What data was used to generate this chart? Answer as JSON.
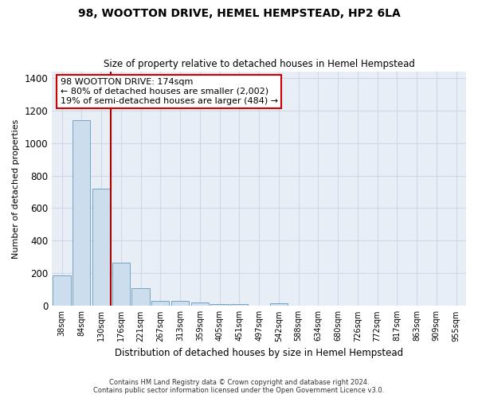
{
  "title": "98, WOOTTON DRIVE, HEMEL HEMPSTEAD, HP2 6LA",
  "subtitle": "Size of property relative to detached houses in Hemel Hempstead",
  "xlabel": "Distribution of detached houses by size in Hemel Hempstead",
  "ylabel": "Number of detached properties",
  "bar_color": "#ccdded",
  "bar_edge_color": "#6699bb",
  "grid_color": "#d0d8e8",
  "plot_bg_color": "#e8eef5",
  "fig_bg_color": "#ffffff",
  "categories": [
    "38sqm",
    "84sqm",
    "130sqm",
    "176sqm",
    "221sqm",
    "267sqm",
    "313sqm",
    "359sqm",
    "405sqm",
    "451sqm",
    "497sqm",
    "542sqm",
    "588sqm",
    "634sqm",
    "680sqm",
    "726sqm",
    "772sqm",
    "817sqm",
    "863sqm",
    "909sqm",
    "955sqm"
  ],
  "values": [
    185,
    1140,
    720,
    265,
    110,
    32,
    30,
    20,
    10,
    12,
    0,
    14,
    0,
    0,
    0,
    0,
    0,
    0,
    0,
    0,
    0
  ],
  "ylim": [
    0,
    1440
  ],
  "yticks": [
    0,
    200,
    400,
    600,
    800,
    1000,
    1200,
    1400
  ],
  "vline_x_idx": 2.5,
  "annotation_text": "98 WOOTTON DRIVE: 174sqm\n← 80% of detached houses are smaller (2,002)\n19% of semi-detached houses are larger (484) →",
  "vline_color": "#aa0000",
  "ann_box_color": "#cc0000",
  "footer_line1": "Contains HM Land Registry data © Crown copyright and database right 2024.",
  "footer_line2": "Contains public sector information licensed under the Open Government Licence v3.0."
}
